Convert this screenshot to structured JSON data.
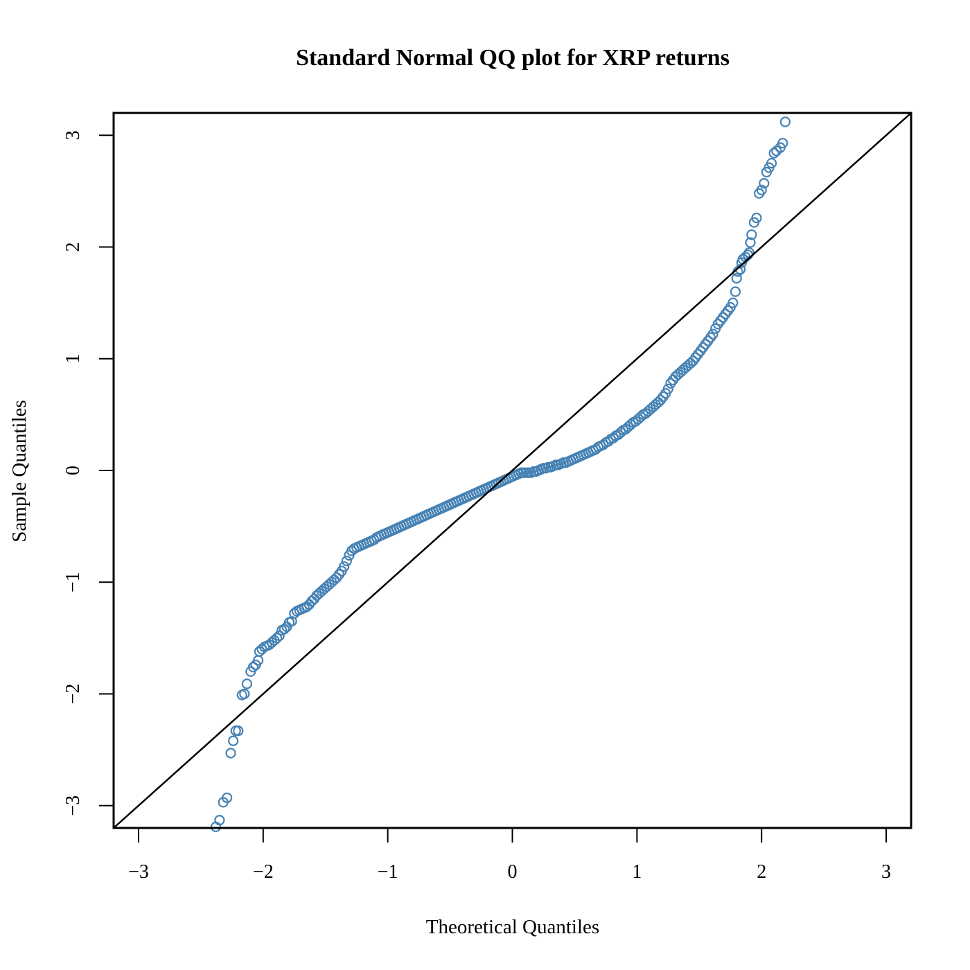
{
  "chart_data": {
    "type": "scatter",
    "title": "Standard Normal QQ plot for XRP returns",
    "xlabel": "Theoretical Quantiles",
    "ylabel": "Sample Quantiles",
    "xlim": [
      -3.2,
      3.2
    ],
    "ylim": [
      -3.2,
      3.2
    ],
    "x_ticks": [
      {
        "value": -3,
        "label": "−3"
      },
      {
        "value": -2,
        "label": "−2"
      },
      {
        "value": -1,
        "label": "−1"
      },
      {
        "value": 0,
        "label": "0"
      },
      {
        "value": 1,
        "label": "1"
      },
      {
        "value": 2,
        "label": "2"
      },
      {
        "value": 3,
        "label": "3"
      }
    ],
    "y_ticks": [
      {
        "value": -3,
        "label": "−3"
      },
      {
        "value": -2,
        "label": "−2"
      },
      {
        "value": -1,
        "label": "−1"
      },
      {
        "value": 0,
        "label": "0"
      },
      {
        "value": 1,
        "label": "1"
      },
      {
        "value": 2,
        "label": "2"
      },
      {
        "value": 3,
        "label": "3"
      }
    ],
    "grid": false,
    "point_color": "#4682B4",
    "line_color": "#000000",
    "reference_line": {
      "intercept": 0,
      "slope": 1
    },
    "points": [
      [
        -2.38,
        -3.19
      ],
      [
        -2.35,
        -3.13
      ],
      [
        -2.32,
        -2.97
      ],
      [
        -2.29,
        -2.93
      ],
      [
        -2.26,
        -2.53
      ],
      [
        -2.24,
        -2.42
      ],
      [
        -2.22,
        -2.33
      ],
      [
        -2.2,
        -2.33
      ],
      [
        -2.17,
        -2.01
      ],
      [
        -2.15,
        -2.0
      ],
      [
        -2.13,
        -1.91
      ],
      [
        -2.1,
        -1.8
      ],
      [
        -2.08,
        -1.76
      ],
      [
        -2.06,
        -1.74
      ],
      [
        -2.04,
        -1.7
      ],
      [
        -2.03,
        -1.62
      ],
      [
        -2.01,
        -1.6
      ],
      [
        -1.99,
        -1.58
      ],
      [
        -1.97,
        -1.57
      ],
      [
        -1.95,
        -1.56
      ],
      [
        -1.93,
        -1.54
      ],
      [
        -1.91,
        -1.52
      ],
      [
        -1.89,
        -1.5
      ],
      [
        -1.87,
        -1.48
      ],
      [
        -1.85,
        -1.43
      ],
      [
        -1.83,
        -1.42
      ],
      [
        -1.81,
        -1.4
      ],
      [
        -1.79,
        -1.36
      ],
      [
        -1.77,
        -1.35
      ],
      [
        -1.75,
        -1.28
      ],
      [
        -1.73,
        -1.26
      ],
      [
        -1.71,
        -1.25
      ],
      [
        -1.69,
        -1.24
      ],
      [
        -1.67,
        -1.23
      ],
      [
        -1.65,
        -1.22
      ],
      [
        -1.63,
        -1.2
      ],
      [
        -1.61,
        -1.17
      ],
      [
        -1.59,
        -1.15
      ],
      [
        -1.57,
        -1.12
      ],
      [
        -1.55,
        -1.1
      ],
      [
        -1.53,
        -1.08
      ],
      [
        -1.51,
        -1.06
      ],
      [
        -1.49,
        -1.04
      ],
      [
        -1.47,
        -1.02
      ],
      [
        -1.45,
        -1.0
      ],
      [
        -1.43,
        -0.98
      ],
      [
        -1.41,
        -0.96
      ],
      [
        -1.39,
        -0.93
      ],
      [
        -1.37,
        -0.9
      ],
      [
        -1.35,
        -0.86
      ],
      [
        -1.33,
        -0.81
      ],
      [
        -1.31,
        -0.76
      ],
      [
        -1.29,
        -0.72
      ],
      [
        -1.27,
        -0.7
      ],
      [
        -1.25,
        -0.69
      ],
      [
        -1.23,
        -0.68
      ],
      [
        -1.21,
        -0.67
      ],
      [
        -1.19,
        -0.66
      ],
      [
        -1.17,
        -0.65
      ],
      [
        -1.15,
        -0.64
      ],
      [
        -1.13,
        -0.63
      ],
      [
        -1.11,
        -0.62
      ],
      [
        -1.09,
        -0.6
      ],
      [
        -1.07,
        -0.59
      ],
      [
        -1.05,
        -0.58
      ],
      [
        -1.03,
        -0.57
      ],
      [
        -1.01,
        -0.56
      ],
      [
        -0.99,
        -0.55
      ],
      [
        -0.97,
        -0.54
      ],
      [
        -0.95,
        -0.53
      ],
      [
        -0.93,
        -0.52
      ],
      [
        -0.91,
        -0.51
      ],
      [
        -0.89,
        -0.5
      ],
      [
        -0.87,
        -0.49
      ],
      [
        -0.85,
        -0.48
      ],
      [
        -0.83,
        -0.47
      ],
      [
        -0.81,
        -0.46
      ],
      [
        -0.79,
        -0.45
      ],
      [
        -0.77,
        -0.44
      ],
      [
        -0.75,
        -0.43
      ],
      [
        -0.73,
        -0.42
      ],
      [
        -0.71,
        -0.41
      ],
      [
        -0.69,
        -0.4
      ],
      [
        -0.67,
        -0.39
      ],
      [
        -0.65,
        -0.38
      ],
      [
        -0.63,
        -0.37
      ],
      [
        -0.61,
        -0.36
      ],
      [
        -0.59,
        -0.35
      ],
      [
        -0.57,
        -0.34
      ],
      [
        -0.55,
        -0.33
      ],
      [
        -0.53,
        -0.32
      ],
      [
        -0.51,
        -0.31
      ],
      [
        -0.49,
        -0.3
      ],
      [
        -0.47,
        -0.29
      ],
      [
        -0.45,
        -0.28
      ],
      [
        -0.43,
        -0.27
      ],
      [
        -0.41,
        -0.26
      ],
      [
        -0.39,
        -0.25
      ],
      [
        -0.37,
        -0.24
      ],
      [
        -0.35,
        -0.23
      ],
      [
        -0.33,
        -0.22
      ],
      [
        -0.31,
        -0.21
      ],
      [
        -0.29,
        -0.2
      ],
      [
        -0.27,
        -0.19
      ],
      [
        -0.25,
        -0.18
      ],
      [
        -0.23,
        -0.17
      ],
      [
        -0.21,
        -0.16
      ],
      [
        -0.19,
        -0.15
      ],
      [
        -0.17,
        -0.14
      ],
      [
        -0.15,
        -0.13
      ],
      [
        -0.13,
        -0.12
      ],
      [
        -0.11,
        -0.11
      ],
      [
        -0.09,
        -0.1
      ],
      [
        -0.07,
        -0.09
      ],
      [
        -0.05,
        -0.08
      ],
      [
        -0.03,
        -0.07
      ],
      [
        -0.01,
        -0.06
      ],
      [
        0.01,
        -0.05
      ],
      [
        0.03,
        -0.04
      ],
      [
        0.05,
        -0.03
      ],
      [
        0.07,
        -0.02
      ],
      [
        0.09,
        -0.02
      ],
      [
        0.11,
        -0.02
      ],
      [
        0.13,
        -0.02
      ],
      [
        0.15,
        -0.02
      ],
      [
        0.17,
        -0.01
      ],
      [
        0.19,
        -0.01
      ],
      [
        0.21,
        0.0
      ],
      [
        0.23,
        0.01
      ],
      [
        0.25,
        0.02
      ],
      [
        0.27,
        0.02
      ],
      [
        0.29,
        0.03
      ],
      [
        0.31,
        0.03
      ],
      [
        0.33,
        0.04
      ],
      [
        0.35,
        0.05
      ],
      [
        0.37,
        0.05
      ],
      [
        0.39,
        0.06
      ],
      [
        0.41,
        0.07
      ],
      [
        0.43,
        0.07
      ],
      [
        0.45,
        0.08
      ],
      [
        0.47,
        0.09
      ],
      [
        0.49,
        0.1
      ],
      [
        0.51,
        0.11
      ],
      [
        0.53,
        0.12
      ],
      [
        0.55,
        0.13
      ],
      [
        0.57,
        0.14
      ],
      [
        0.59,
        0.15
      ],
      [
        0.61,
        0.16
      ],
      [
        0.63,
        0.17
      ],
      [
        0.65,
        0.18
      ],
      [
        0.67,
        0.19
      ],
      [
        0.69,
        0.21
      ],
      [
        0.71,
        0.22
      ],
      [
        0.73,
        0.23
      ],
      [
        0.75,
        0.25
      ],
      [
        0.77,
        0.26
      ],
      [
        0.79,
        0.28
      ],
      [
        0.81,
        0.29
      ],
      [
        0.83,
        0.31
      ],
      [
        0.85,
        0.32
      ],
      [
        0.87,
        0.34
      ],
      [
        0.89,
        0.36
      ],
      [
        0.91,
        0.37
      ],
      [
        0.93,
        0.39
      ],
      [
        0.95,
        0.41
      ],
      [
        0.97,
        0.43
      ],
      [
        0.99,
        0.44
      ],
      [
        1.01,
        0.46
      ],
      [
        1.03,
        0.48
      ],
      [
        1.05,
        0.5
      ],
      [
        1.07,
        0.51
      ],
      [
        1.09,
        0.53
      ],
      [
        1.11,
        0.55
      ],
      [
        1.13,
        0.57
      ],
      [
        1.15,
        0.59
      ],
      [
        1.17,
        0.61
      ],
      [
        1.19,
        0.63
      ],
      [
        1.21,
        0.66
      ],
      [
        1.23,
        0.69
      ],
      [
        1.25,
        0.73
      ],
      [
        1.27,
        0.78
      ],
      [
        1.29,
        0.81
      ],
      [
        1.31,
        0.84
      ],
      [
        1.33,
        0.86
      ],
      [
        1.35,
        0.88
      ],
      [
        1.37,
        0.9
      ],
      [
        1.39,
        0.92
      ],
      [
        1.41,
        0.94
      ],
      [
        1.43,
        0.96
      ],
      [
        1.45,
        0.98
      ],
      [
        1.47,
        1.01
      ],
      [
        1.49,
        1.04
      ],
      [
        1.51,
        1.07
      ],
      [
        1.53,
        1.1
      ],
      [
        1.55,
        1.13
      ],
      [
        1.57,
        1.16
      ],
      [
        1.59,
        1.19
      ],
      [
        1.61,
        1.22
      ],
      [
        1.63,
        1.27
      ],
      [
        1.65,
        1.31
      ],
      [
        1.67,
        1.34
      ],
      [
        1.69,
        1.37
      ],
      [
        1.71,
        1.4
      ],
      [
        1.73,
        1.43
      ],
      [
        1.75,
        1.46
      ],
      [
        1.77,
        1.5
      ],
      [
        1.79,
        1.6
      ],
      [
        1.8,
        1.72
      ],
      [
        1.81,
        1.78
      ],
      [
        1.83,
        1.8
      ],
      [
        1.84,
        1.86
      ],
      [
        1.85,
        1.89
      ],
      [
        1.87,
        1.91
      ],
      [
        1.89,
        1.93
      ],
      [
        1.9,
        1.95
      ],
      [
        1.91,
        2.04
      ],
      [
        1.92,
        2.11
      ],
      [
        1.94,
        2.22
      ],
      [
        1.96,
        2.26
      ],
      [
        1.98,
        2.48
      ],
      [
        2.0,
        2.51
      ],
      [
        2.02,
        2.57
      ],
      [
        2.04,
        2.67
      ],
      [
        2.06,
        2.71
      ],
      [
        2.08,
        2.75
      ],
      [
        2.1,
        2.84
      ],
      [
        2.12,
        2.86
      ],
      [
        2.15,
        2.89
      ],
      [
        2.17,
        2.93
      ],
      [
        2.19,
        3.12
      ]
    ]
  }
}
